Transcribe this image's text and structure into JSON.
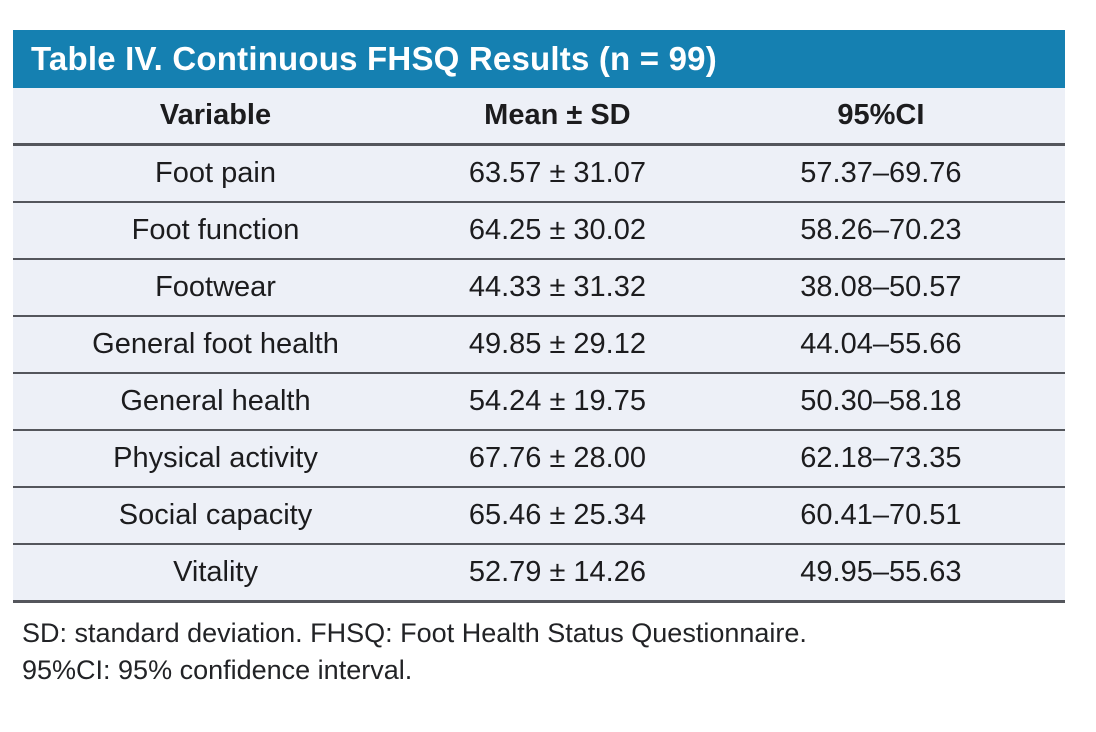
{
  "table": {
    "title": "Table IV. Continuous FHSQ Results (n = 99)",
    "columns": {
      "variable": "Variable",
      "mean_sd": "Mean ± SD",
      "ci": "95%CI"
    },
    "rows": [
      {
        "variable": "Foot pain",
        "mean_sd": "63.57 ± 31.07",
        "ci": "57.37–69.76"
      },
      {
        "variable": "Foot function",
        "mean_sd": "64.25 ± 30.02",
        "ci": "58.26–70.23"
      },
      {
        "variable": "Footwear",
        "mean_sd": "44.33 ± 31.32",
        "ci": "38.08–50.57"
      },
      {
        "variable": "General foot health",
        "mean_sd": "49.85 ± 29.12",
        "ci": "44.04–55.66"
      },
      {
        "variable": "General health",
        "mean_sd": "54.24 ± 19.75",
        "ci": "50.30–58.18"
      },
      {
        "variable": "Physical activity",
        "mean_sd": "67.76 ± 28.00",
        "ci": "62.18–73.35"
      },
      {
        "variable": "Social capacity",
        "mean_sd": "65.46 ± 25.34",
        "ci": "60.41–70.51"
      },
      {
        "variable": "Vitality",
        "mean_sd": "52.79 ± 14.26",
        "ci": "49.95–55.63"
      }
    ],
    "footnotes": [
      "SD: standard deviation. FHSQ: Foot Health Status Questionnaire.",
      "95%CI: 95% confidence interval."
    ],
    "colors": {
      "title_bar_bg": "#1580B1",
      "title_text": "#FFFFFF",
      "row_bg": "#EDF0F7",
      "separator": "#54565C",
      "body_text": "#1C1C1E"
    }
  }
}
